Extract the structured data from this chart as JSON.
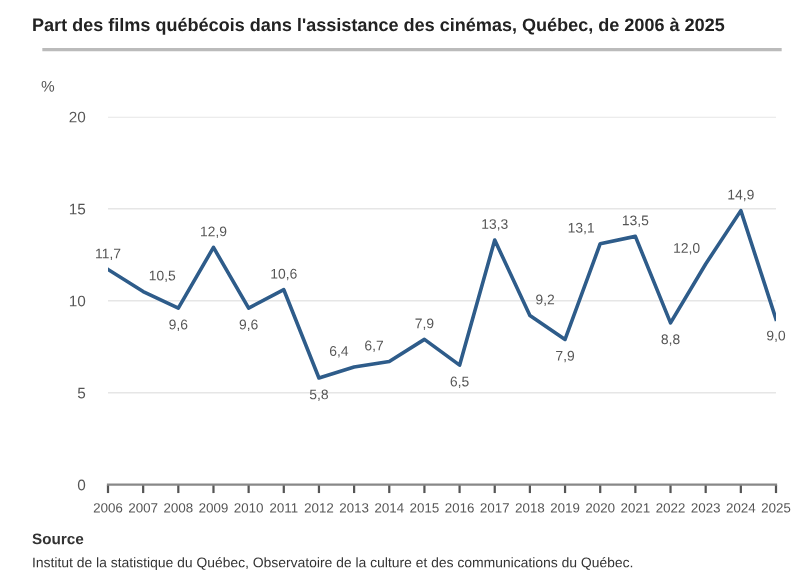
{
  "chart_data": {
    "type": "line",
    "title": "Part des films québécois dans l'assistance des cinémas, Québec, de 2006 à 2025",
    "ylabel": "%",
    "categories": [
      "2006",
      "2007",
      "2008",
      "2009",
      "2010",
      "2011",
      "2012",
      "2013",
      "2014",
      "2015",
      "2016",
      "2017",
      "2018",
      "2019",
      "2020",
      "2021",
      "2022",
      "2023",
      "2024",
      "2025"
    ],
    "series": [
      {
        "color": "#2e5c8a",
        "values": [
          11.7,
          10.5,
          9.6,
          12.9,
          9.6,
          10.6,
          5.8,
          6.4,
          6.7,
          7.9,
          6.5,
          13.3,
          9.2,
          7.9,
          13.1,
          13.5,
          8.8,
          12.0,
          14.9,
          9.0
        ],
        "value_labels": [
          "11,7",
          "10,5",
          "9,6",
          "12,9",
          "9,6",
          "10,6",
          "5,8",
          "6,4",
          "6,7",
          "7,9",
          "6,5",
          "13,3",
          "9,2",
          "7,9",
          "13,1",
          "13,5",
          "8,8",
          "12,0",
          "14,9",
          "9,0"
        ]
      }
    ],
    "ylim": [
      0,
      20
    ],
    "yticks": [
      0,
      5,
      10,
      15,
      20
    ],
    "grid": "y",
    "marker": "none",
    "line_style": "solid",
    "legend": false,
    "annotations": [
      "Source",
      "Institut de la statistique du Québec, Observatoire de la culture et des communications du Québec."
    ]
  }
}
